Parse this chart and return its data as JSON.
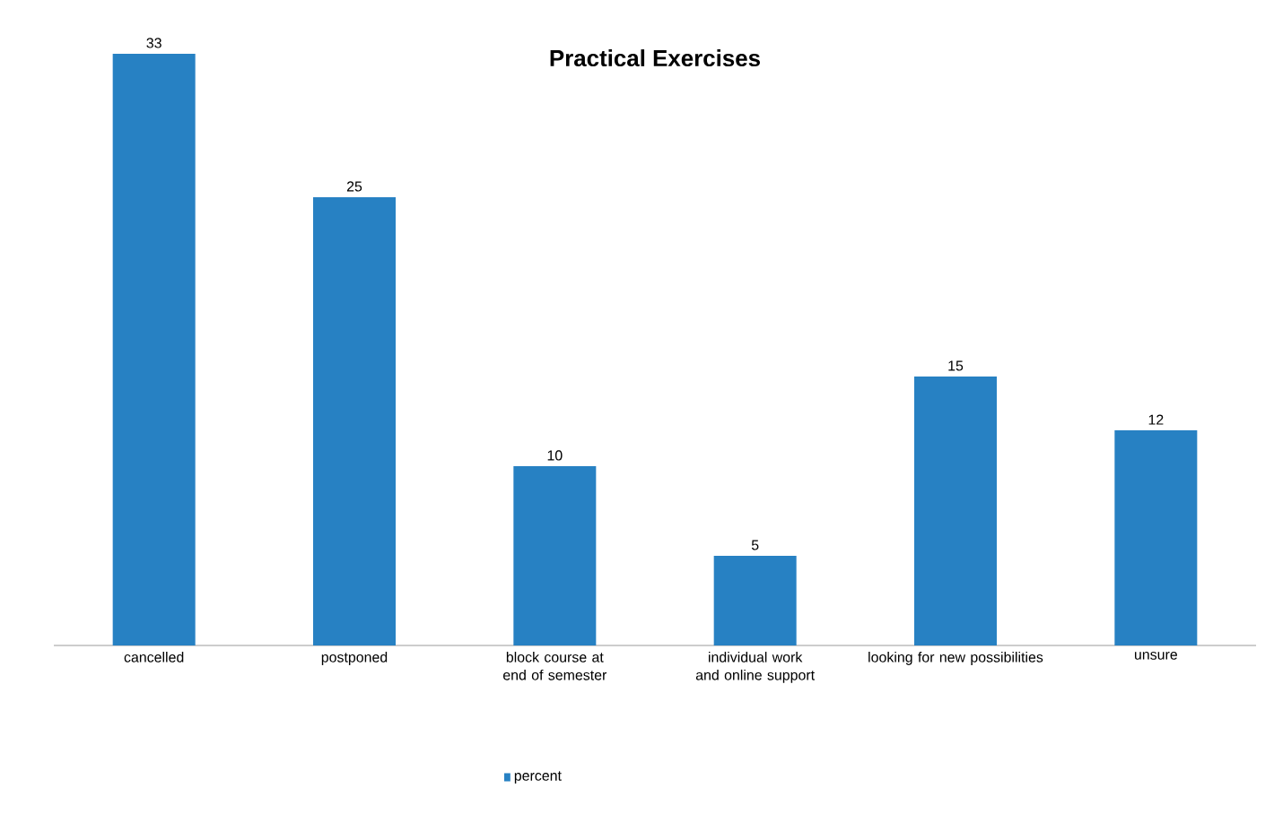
{
  "chart_data": {
    "type": "bar",
    "title": "Practical Exercises",
    "categories": [
      "cancelled",
      "postponed",
      "block course at end of semester",
      "individual work and online support",
      "looking for new possibilities",
      "unsure"
    ],
    "series": [
      {
        "name": "percent",
        "color": "#2781c3",
        "values": [
          33,
          25,
          10,
          5,
          15,
          12
        ]
      }
    ],
    "data_labels": true,
    "legend": "bottom"
  }
}
